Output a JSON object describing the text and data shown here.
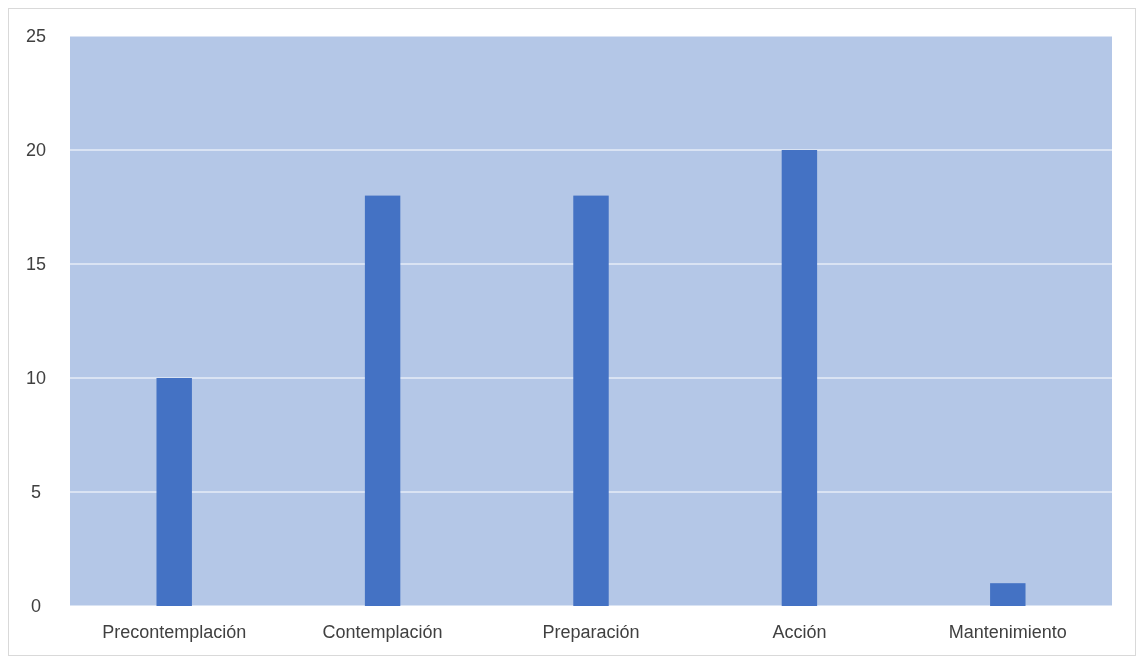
{
  "chart_data": {
    "type": "bar",
    "categories": [
      "Precontemplación",
      "Contemplación",
      "Preparación",
      "Acción",
      "Mantenimiento"
    ],
    "values": [
      10,
      18,
      18,
      20,
      1
    ],
    "color": "#4472c4",
    "ylim": [
      0,
      25
    ],
    "yticks": [
      0,
      5,
      10,
      15,
      20,
      25
    ],
    "grid": "y"
  }
}
